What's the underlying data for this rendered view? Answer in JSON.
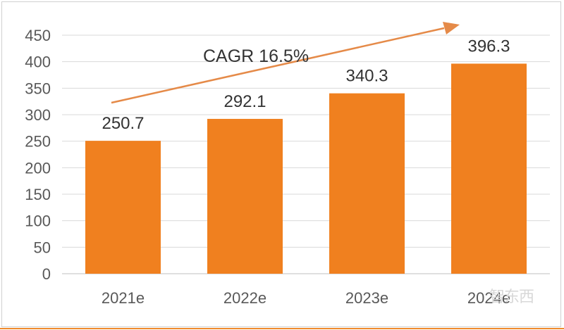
{
  "chart_data": {
    "type": "bar",
    "categories": [
      "2021e",
      "2022e",
      "2023e",
      "2024e"
    ],
    "values": [
      250.7,
      292.1,
      340.3,
      396.3
    ],
    "data_labels": [
      "250.7",
      "292.1",
      "340.3",
      "396.3"
    ],
    "title": "",
    "xlabel": "",
    "ylabel": "",
    "ylim": [
      0,
      450
    ],
    "yticks": [
      0,
      50,
      100,
      150,
      200,
      250,
      300,
      350,
      400,
      450
    ],
    "grid": true,
    "legend": "none",
    "annotation": "CAGR 16.5%",
    "bar_color": "#f0801f",
    "grid_color": "#d9d9d9"
  },
  "watermark": "智东西"
}
